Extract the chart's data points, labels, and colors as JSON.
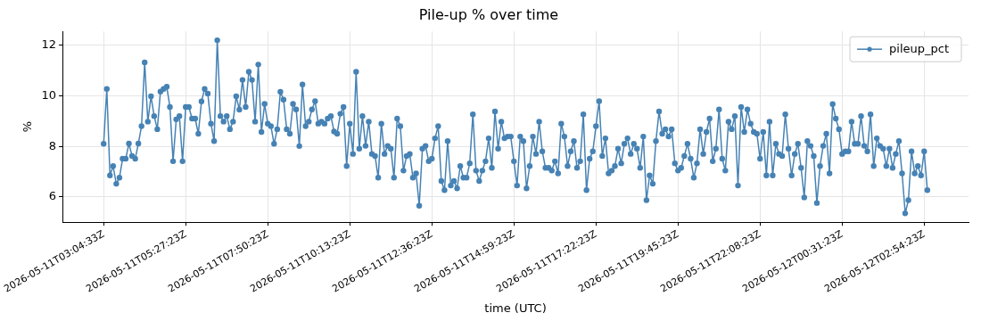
{
  "chart_data": {
    "type": "line",
    "title": "Pile-up % over time",
    "xlabel": "time (UTC)",
    "ylabel": "%",
    "categories": [
      "2026-05-11T03:04:33Z",
      null,
      null,
      null,
      null,
      null,
      null,
      null,
      null,
      null,
      null,
      null,
      null,
      null,
      null,
      null,
      null,
      null,
      null,
      null,
      null,
      null,
      null,
      null,
      null,
      null,
      "2026-05-11T05:27:23Z",
      null,
      null,
      null,
      null,
      null,
      null,
      null,
      null,
      null,
      null,
      null,
      null,
      null,
      null,
      null,
      null,
      null,
      null,
      null,
      null,
      null,
      null,
      null,
      null,
      null,
      "2026-05-11T07:50:23Z",
      null,
      null,
      null,
      null,
      null,
      null,
      null,
      null,
      null,
      null,
      null,
      null,
      null,
      null,
      null,
      null,
      null,
      null,
      null,
      null,
      null,
      null,
      null,
      null,
      null,
      "2026-05-11T10:13:23Z",
      null,
      null,
      null,
      null,
      null,
      null,
      null,
      null,
      null,
      null,
      null,
      null,
      null,
      null,
      null,
      null,
      null,
      null,
      null,
      null,
      null,
      null,
      null,
      null,
      null,
      "2026-05-11T12:36:23Z",
      null,
      null,
      null,
      null,
      null,
      null,
      null,
      null,
      null,
      null,
      null,
      null,
      null,
      null,
      null,
      null,
      null,
      null,
      null,
      null,
      null,
      null,
      null,
      null,
      null,
      "2026-05-11T14:59:23Z",
      null,
      null,
      null,
      null,
      null,
      null,
      null,
      null,
      null,
      null,
      null,
      null,
      null,
      null,
      null,
      null,
      null,
      null,
      null,
      null,
      null,
      null,
      null,
      null,
      null,
      "2026-05-11T17:22:23Z",
      null,
      null,
      null,
      null,
      null,
      null,
      null,
      null,
      null,
      null,
      null,
      null,
      null,
      null,
      null,
      null,
      null,
      null,
      null,
      null,
      null,
      null,
      null,
      null,
      null,
      "2026-05-11T19:45:23Z",
      null,
      null,
      null,
      null,
      null,
      null,
      null,
      null,
      null,
      null,
      null,
      null,
      null,
      null,
      null,
      null,
      null,
      null,
      null,
      null,
      null,
      null,
      null,
      null,
      null,
      "2026-05-11T22:08:23Z",
      null,
      null,
      null,
      null,
      null,
      null,
      null,
      null,
      null,
      null,
      null,
      null,
      null,
      null,
      null,
      null,
      null,
      null,
      null,
      null,
      null,
      null,
      null,
      null,
      null,
      "2026-05-12T00:31:23Z",
      null,
      null,
      null,
      null,
      null,
      null,
      null,
      null,
      null,
      null,
      null,
      null,
      null,
      null,
      null,
      null,
      null,
      null,
      null,
      null,
      null,
      null,
      null,
      null,
      null,
      "2026-05-12T02:54:23Z",
      null
    ],
    "series": [
      {
        "name": "pileup_pct",
        "color": "#4682b4",
        "values": [
          8.1,
          10.27,
          6.85,
          7.22,
          6.52,
          6.76,
          7.51,
          7.51,
          8.11,
          7.62,
          7.51,
          8.11,
          8.8,
          11.32,
          8.98,
          9.98,
          9.2,
          8.68,
          10.17,
          10.27,
          10.36,
          9.56,
          7.41,
          9.07,
          9.2,
          7.41,
          9.56,
          9.56,
          9.1,
          9.1,
          8.5,
          9.78,
          10.27,
          10.09,
          8.9,
          8.21,
          12.2,
          9.2,
          8.98,
          9.2,
          8.68,
          8.98,
          9.98,
          9.45,
          10.63,
          9.56,
          10.95,
          10.63,
          8.98,
          11.24,
          8.57,
          9.68,
          8.9,
          8.8,
          8.1,
          8.68,
          10.16,
          9.85,
          8.68,
          8.5,
          9.68,
          9.46,
          8.01,
          10.45,
          8.8,
          8.98,
          9.46,
          9.79,
          8.9,
          8.98,
          8.9,
          9.1,
          9.2,
          8.59,
          8.5,
          9.29,
          9.56,
          7.22,
          8.9,
          7.7,
          10.95,
          7.91,
          9.2,
          8.02,
          8.98,
          7.7,
          7.62,
          6.76,
          8.9,
          7.7,
          8.02,
          7.91,
          6.76,
          9.1,
          8.8,
          7.04,
          7.62,
          7.7,
          6.76,
          6.93,
          5.65,
          7.91,
          8.02,
          7.41,
          7.51,
          8.32,
          8.8,
          6.63,
          6.27,
          8.21,
          6.45,
          6.63,
          6.34,
          7.22,
          6.76,
          6.76,
          7.33,
          9.27,
          7.04,
          6.63,
          7.04,
          7.41,
          8.32,
          7.15,
          9.38,
          7.91,
          8.98,
          8.32,
          8.39,
          8.39,
          7.41,
          6.45,
          8.39,
          8.21,
          6.34,
          7.22,
          8.39,
          7.7,
          8.98,
          7.8,
          7.15,
          7.15,
          7.04,
          7.41,
          6.93,
          8.9,
          8.39,
          7.22,
          7.8,
          8.21,
          7.15,
          7.41,
          9.27,
          6.27,
          7.51,
          7.8,
          8.8,
          9.79,
          7.62,
          8.32,
          6.93,
          7.04,
          7.22,
          7.91,
          7.33,
          8.1,
          8.32,
          7.7,
          8.1,
          7.91,
          7.15,
          8.39,
          5.87,
          6.85,
          6.52,
          8.21,
          9.38,
          8.5,
          8.68,
          8.39,
          8.68,
          7.33,
          7.04,
          7.15,
          7.62,
          8.1,
          7.51,
          6.76,
          7.33,
          8.68,
          7.7,
          8.57,
          9.1,
          7.41,
          7.91,
          9.46,
          7.51,
          7.04,
          8.98,
          8.68,
          9.2,
          6.45,
          9.56,
          8.57,
          9.46,
          8.9,
          8.57,
          8.5,
          7.51,
          8.57,
          6.85,
          8.98,
          6.85,
          8.1,
          7.7,
          7.62,
          9.27,
          7.91,
          6.85,
          7.7,
          8.1,
          7.15,
          5.98,
          8.21,
          8.02,
          7.62,
          5.76,
          7.22,
          8.02,
          8.5,
          6.93,
          9.67,
          9.1,
          8.68,
          7.7,
          7.8,
          7.8,
          8.98,
          8.1,
          8.1,
          9.2,
          8.02,
          7.8,
          9.27,
          7.22,
          8.32,
          8.02,
          7.91,
          7.22,
          7.91,
          7.15,
          7.7,
          8.21,
          6.93,
          5.35,
          5.87,
          7.8,
          6.93,
          7.22,
          6.85,
          7.8,
          6.27
        ]
      }
    ],
    "ylim": [
      5.0,
      12.55
    ],
    "yticks": [
      6,
      8,
      10,
      12
    ],
    "grid": true,
    "legend": "top right",
    "marker": "circle",
    "line_style": "solid"
  }
}
